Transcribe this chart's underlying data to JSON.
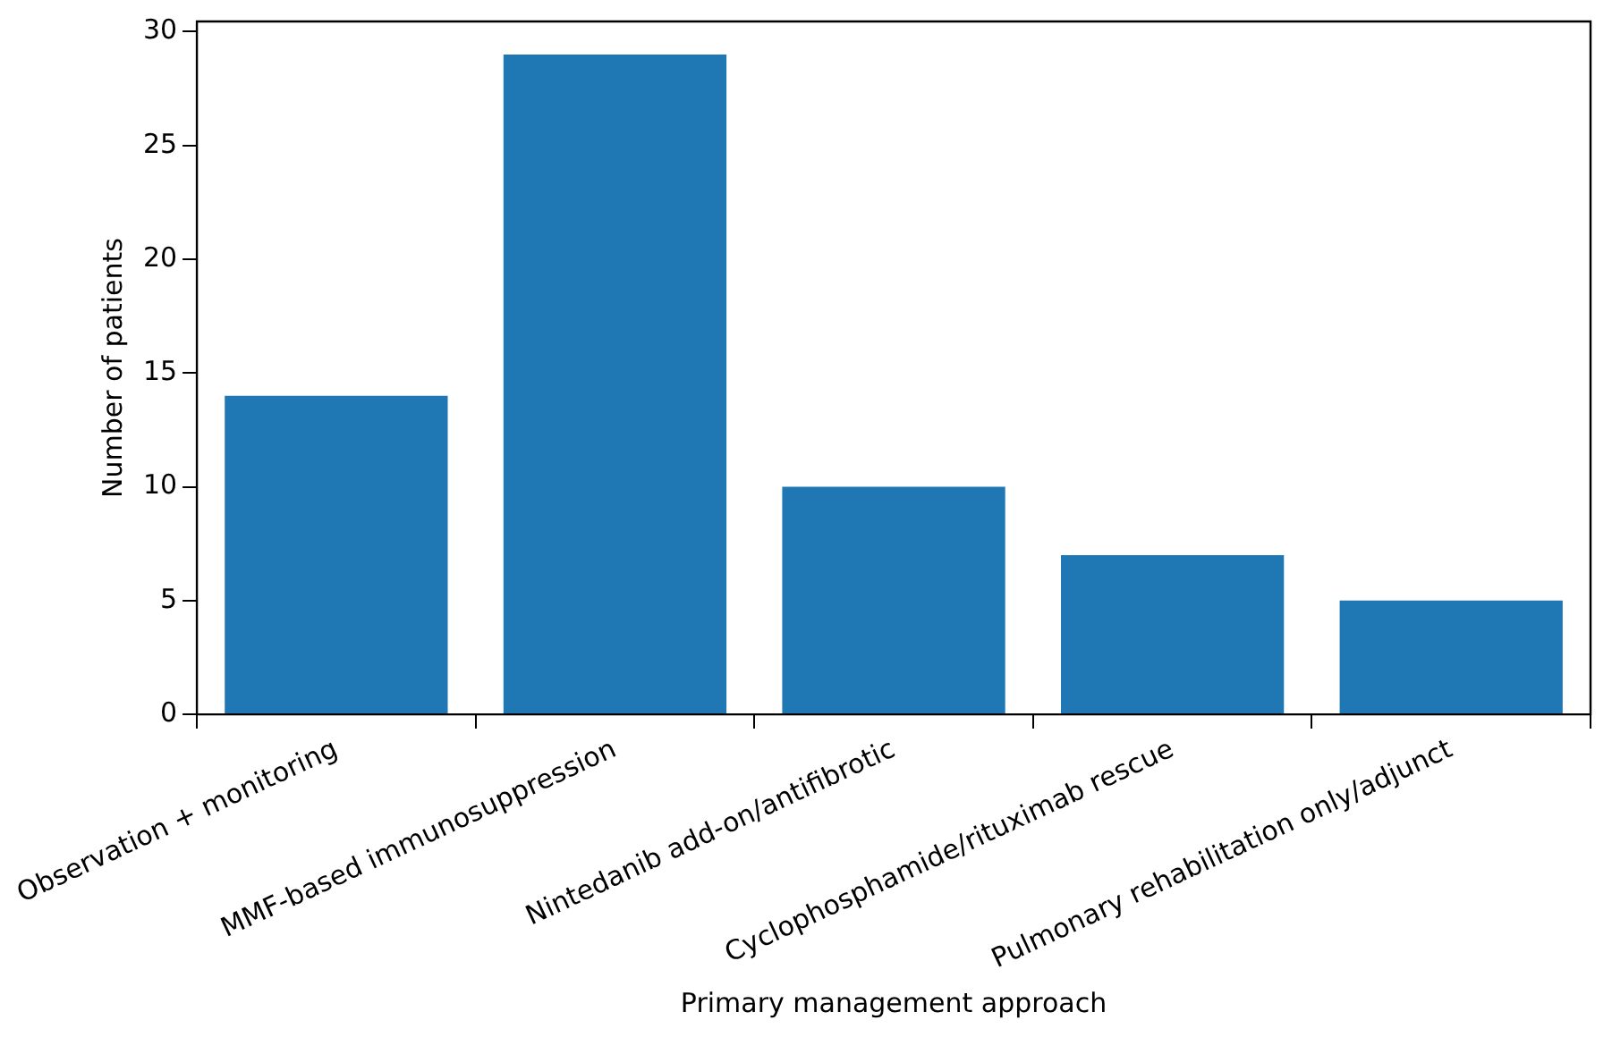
{
  "chart_data": {
    "type": "bar",
    "xlabel": "Primary management approach",
    "ylabel": "Number of patients",
    "categories": [
      "Observation + monitoring",
      "MMF-based immunosuppression",
      "Nintedanib add-on/antifibrotic",
      "Cyclophosphamide/rituximab rescue",
      "Pulmonary rehabilitation only/adjunct"
    ],
    "values": [
      14,
      29,
      10,
      7,
      5
    ],
    "color": "#1f77b4",
    "ylim": [
      0,
      30.45
    ],
    "yticks": [
      0,
      5,
      10,
      15,
      20,
      25,
      30
    ],
    "grid": false,
    "legend": false
  }
}
